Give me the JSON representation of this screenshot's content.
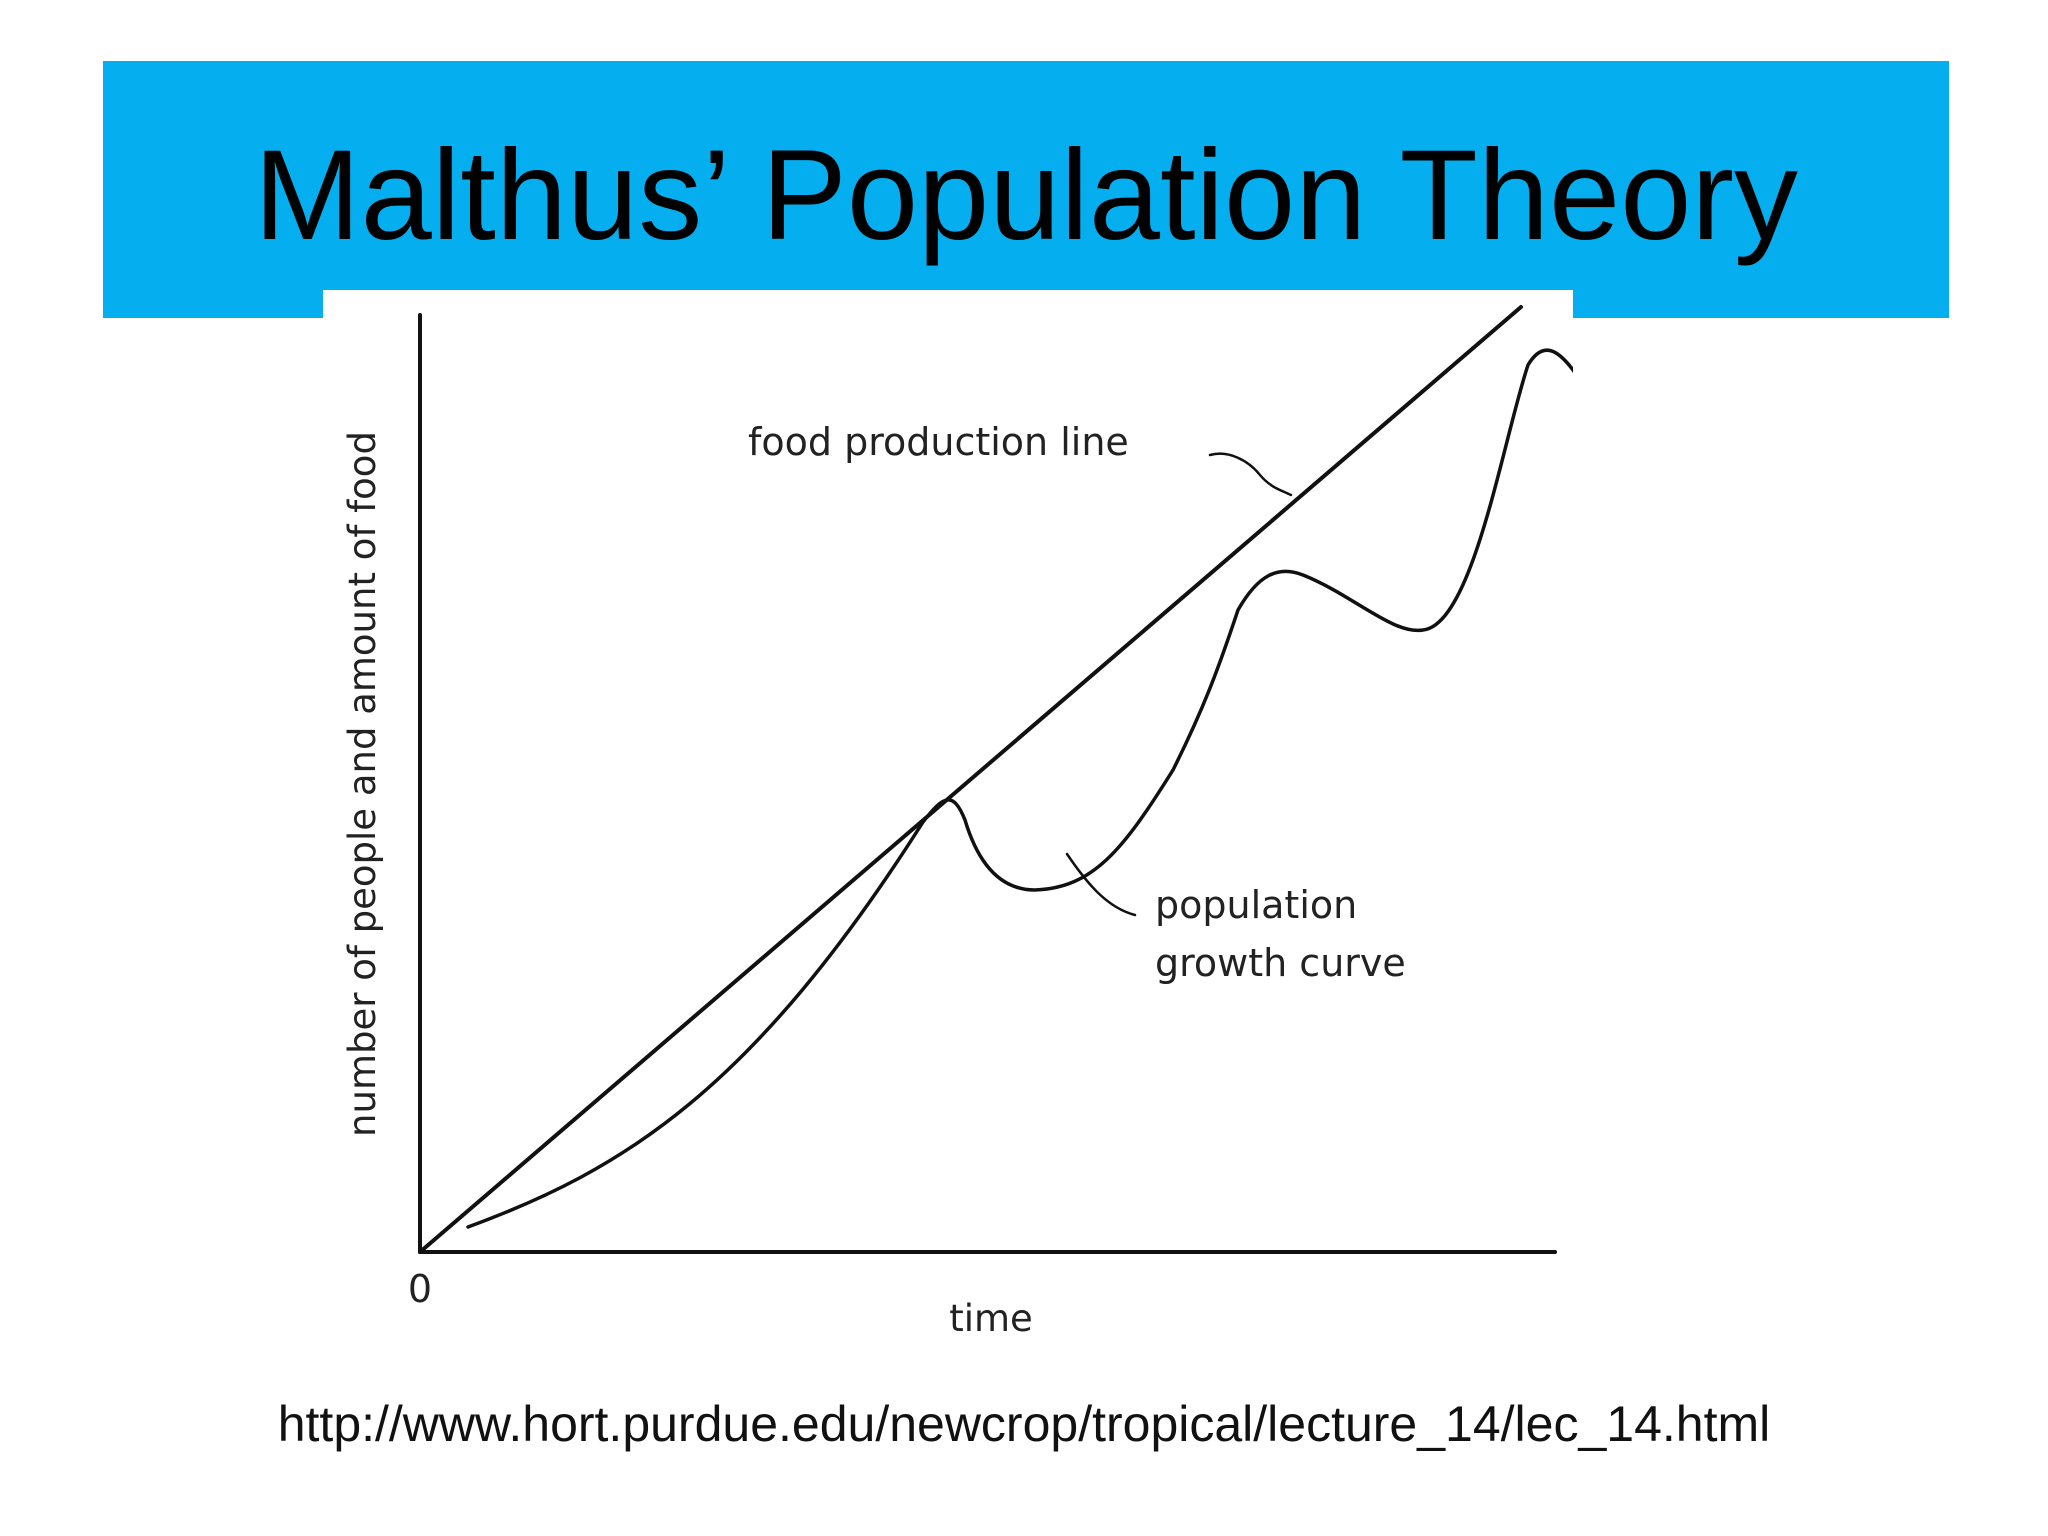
{
  "slide": {
    "title": "Malthus’ Population Theory",
    "source_url": "http://www.hort.purdue.edu/newcrop/tropical/lecture_14/lec_14.html",
    "colors": {
      "title_bar": "#05aeee",
      "ink": "#111111",
      "background": "#ffffff"
    }
  },
  "diagram": {
    "y_axis_label": "number of people and amount of food",
    "x_axis_label": "time",
    "origin_label": "0",
    "food_line_label": "food production line",
    "population_label_line1": "population",
    "population_label_line2": "growth curve"
  }
}
